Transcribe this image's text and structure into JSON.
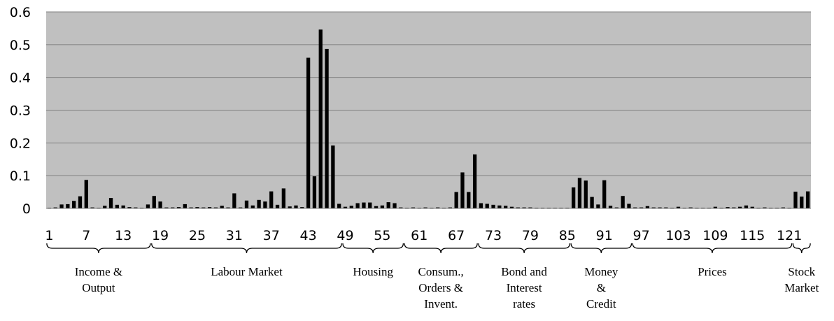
{
  "chart_data": {
    "type": "bar",
    "title": "",
    "xlabel": "",
    "ylabel": "",
    "ylim": [
      0,
      0.6
    ],
    "y_ticks": [
      "0",
      "0.1",
      "0.2",
      "0.3",
      "0.4",
      "0.5",
      "0.6"
    ],
    "x_ticks": [
      "1",
      "7",
      "13",
      "19",
      "25",
      "31",
      "37",
      "43",
      "49",
      "55",
      "61",
      "67",
      "73",
      "79",
      "85",
      "91",
      "97",
      "103",
      "109",
      "115",
      "121"
    ],
    "x_tick_values": [
      1,
      7,
      13,
      19,
      25,
      31,
      37,
      43,
      49,
      55,
      61,
      67,
      73,
      79,
      85,
      91,
      97,
      103,
      109,
      115,
      121
    ],
    "plot_background": "#c0c0c0",
    "bar_color": "#000000",
    "grid": true,
    "legend": "none",
    "x": [
      1,
      2,
      3,
      4,
      5,
      6,
      7,
      8,
      9,
      10,
      11,
      12,
      13,
      14,
      15,
      16,
      17,
      18,
      19,
      20,
      21,
      22,
      23,
      24,
      25,
      26,
      27,
      28,
      29,
      30,
      31,
      32,
      33,
      34,
      35,
      36,
      37,
      38,
      39,
      40,
      41,
      42,
      43,
      44,
      45,
      46,
      47,
      48,
      49,
      50,
      51,
      52,
      53,
      54,
      55,
      56,
      57,
      58,
      59,
      60,
      61,
      62,
      63,
      64,
      65,
      66,
      67,
      68,
      69,
      70,
      71,
      72,
      73,
      74,
      75,
      76,
      77,
      78,
      79,
      80,
      81,
      82,
      83,
      84,
      85,
      86,
      87,
      88,
      89,
      90,
      91,
      92,
      93,
      94,
      95,
      96,
      97,
      98,
      99,
      100,
      101,
      102,
      103,
      104,
      105,
      106,
      107,
      108,
      109,
      110,
      111,
      112,
      113,
      114,
      115,
      116,
      117,
      118,
      119,
      120,
      121,
      122,
      123,
      124
    ],
    "values": [
      0.002,
      0.003,
      0.012,
      0.013,
      0.023,
      0.037,
      0.087,
      0.003,
      0.002,
      0.008,
      0.032,
      0.011,
      0.009,
      0.004,
      0.003,
      0.002,
      0.012,
      0.038,
      0.021,
      0.003,
      0.003,
      0.004,
      0.013,
      0.003,
      0.004,
      0.003,
      0.004,
      0.003,
      0.008,
      0.003,
      0.046,
      0.003,
      0.024,
      0.009,
      0.026,
      0.021,
      0.052,
      0.011,
      0.061,
      0.006,
      0.009,
      0.004,
      0.46,
      0.098,
      0.546,
      0.487,
      0.192,
      0.014,
      0.005,
      0.008,
      0.016,
      0.018,
      0.018,
      0.007,
      0.009,
      0.019,
      0.016,
      0.003,
      0.002,
      0.003,
      0.002,
      0.003,
      0.002,
      0.003,
      0.002,
      0.003,
      0.05,
      0.11,
      0.05,
      0.165,
      0.016,
      0.014,
      0.011,
      0.009,
      0.008,
      0.005,
      0.003,
      0.003,
      0.003,
      0.002,
      0.002,
      0.002,
      0.002,
      0.002,
      0.002,
      0.064,
      0.093,
      0.085,
      0.035,
      0.012,
      0.086,
      0.008,
      0.003,
      0.038,
      0.014,
      0.003,
      0.003,
      0.007,
      0.003,
      0.003,
      0.003,
      0.002,
      0.005,
      0.002,
      0.003,
      0.002,
      0.002,
      0.002,
      0.005,
      0.002,
      0.004,
      0.003,
      0.005,
      0.009,
      0.005,
      0.002,
      0.003,
      0.002,
      0.002,
      0.003,
      0.002,
      0.051,
      0.036,
      0.052
    ],
    "groups": [
      {
        "lines": [
          "Income &",
          "Output"
        ],
        "start": 1,
        "end": 17
      },
      {
        "lines": [
          "Labour Market"
        ],
        "start": 18,
        "end": 48
      },
      {
        "lines": [
          "Housing"
        ],
        "start": 49,
        "end": 58
      },
      {
        "lines": [
          "Consum.,",
          "Orders &",
          "Invent."
        ],
        "start": 59,
        "end": 70
      },
      {
        "lines": [
          "Bond and",
          "Interest",
          "rates"
        ],
        "start": 71,
        "end": 85
      },
      {
        "lines": [
          "Money",
          "&",
          "Credit"
        ],
        "start": 86,
        "end": 95
      },
      {
        "lines": [
          "Prices"
        ],
        "start": 96,
        "end": 121
      },
      {
        "lines": [
          "Stock",
          "Market"
        ],
        "start": 122,
        "end": 124
      }
    ]
  }
}
